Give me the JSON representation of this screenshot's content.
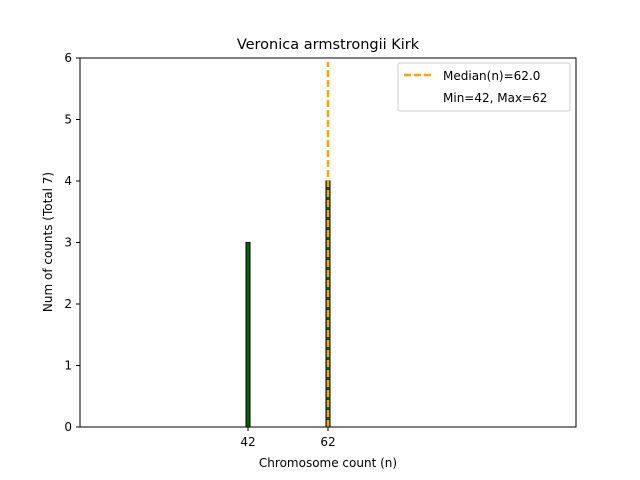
{
  "chart_data": {
    "type": "bar",
    "title": "Veronica armstrongii Kirk",
    "xlabel": "Chromosome count (n)",
    "ylabel": "Num of counts      (Total 7)",
    "xlim": [
      0,
      124
    ],
    "ylim": [
      0,
      6
    ],
    "yticks": [
      0,
      1,
      2,
      3,
      4,
      5,
      6
    ],
    "xticks": [
      42,
      62
    ],
    "bar_width": 1,
    "bars": [
      {
        "x": 42,
        "value": 3,
        "color": "#006400"
      },
      {
        "x": 62,
        "value": 4,
        "color": "#006400"
      }
    ],
    "median_line": {
      "x": 62.0,
      "color": "#FFA500",
      "style": "dashed"
    },
    "legend": {
      "position": "top-right",
      "entries": [
        "Median(n)=62.0",
        "Min=42, Max=62"
      ]
    },
    "grid": false
  }
}
